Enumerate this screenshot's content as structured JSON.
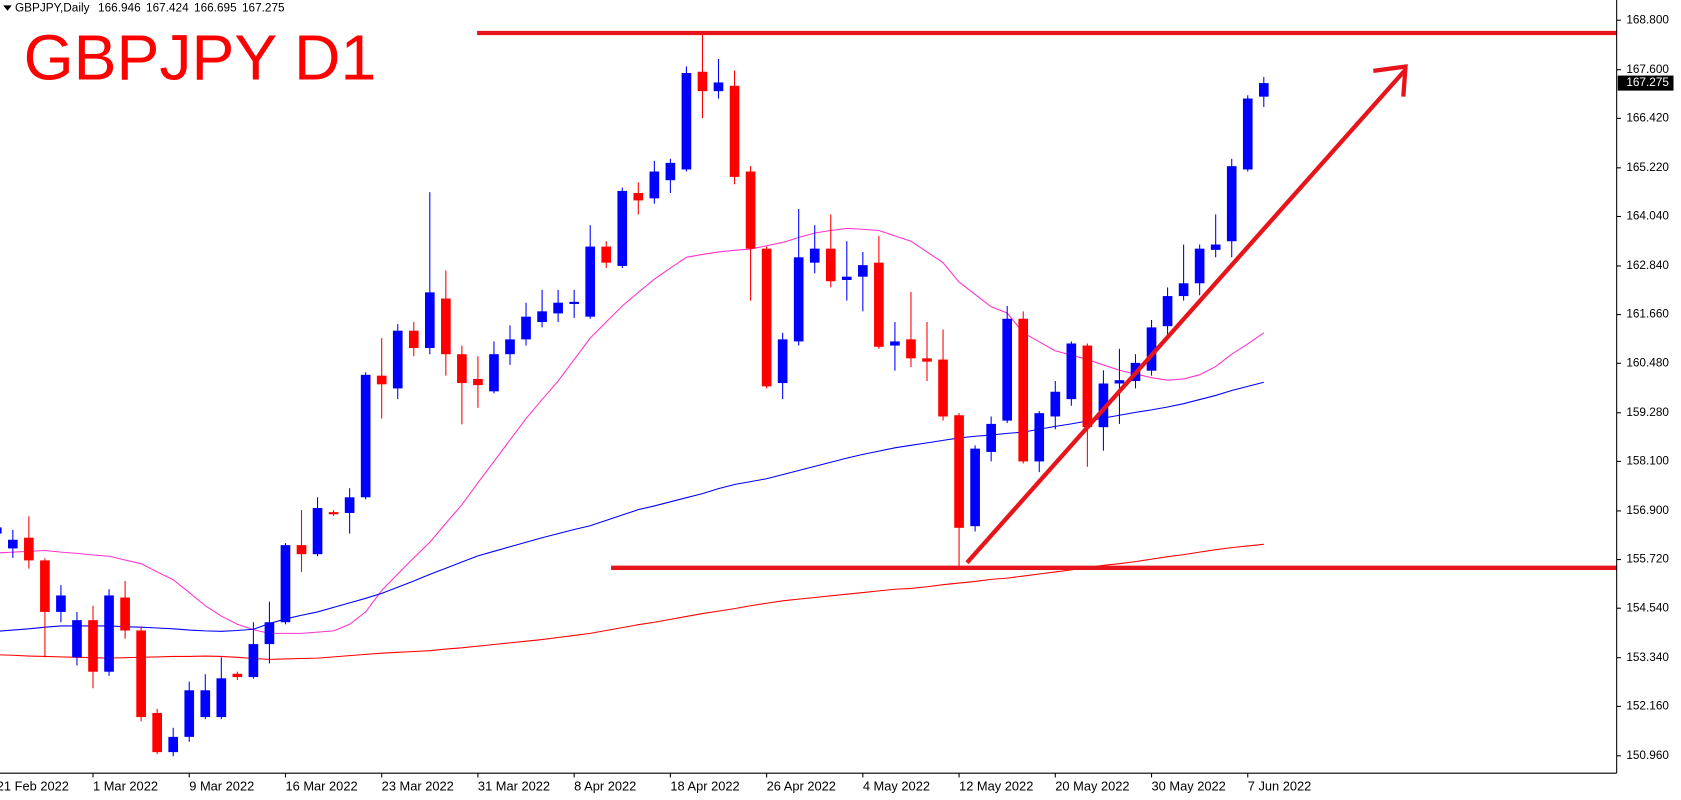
{
  "chart_data": {
    "type": "candlestick",
    "symbol": "GBPJPY,Daily",
    "title": "GBPJPY D1",
    "categories": [
      "21 Feb 2022",
      null,
      null,
      null,
      null,
      null,
      "1 Mar 2022",
      null,
      null,
      null,
      null,
      null,
      "9 Mar 2022",
      null,
      null,
      null,
      null,
      null,
      "16 Mar 2022",
      null,
      null,
      null,
      null,
      null,
      "23 Mar 2022",
      null,
      null,
      null,
      null,
      null,
      "31 Mar 2022",
      null,
      null,
      null,
      null,
      null,
      "8 Apr 2022",
      null,
      null,
      null,
      null,
      null,
      "18 Apr 2022",
      null,
      null,
      null,
      null,
      null,
      "26 Apr 2022",
      null,
      null,
      null,
      null,
      null,
      "4 May 2022",
      null,
      null,
      null,
      null,
      null,
      "12 May 2022",
      null,
      null,
      null,
      null,
      null,
      "20 May 2022",
      null,
      null,
      null,
      null,
      null,
      "30 May 2022",
      null,
      null,
      null,
      null,
      null,
      "7 Jun 2022",
      null
    ],
    "open": [
      156.35,
      155.99,
      156.25,
      155.7,
      154.45,
      153.35,
      154.25,
      153.0,
      154.8,
      154.0,
      152.0,
      151.05,
      151.42,
      151.9,
      151.9,
      152.95,
      152.87,
      153.67,
      154.2,
      156.07,
      155.85,
      156.87,
      156.85,
      157.23,
      160.18,
      159.87,
      161.27,
      160.85,
      162.05,
      160.7,
      160.1,
      159.8,
      160.7,
      161.06,
      161.48,
      161.69,
      161.92,
      161.61,
      163.31,
      162.84,
      164.61,
      164.48,
      164.92,
      165.18,
      167.55,
      167.08,
      167.21,
      165.13,
      163.26,
      160.0,
      161.01,
      162.92,
      163.26,
      162.5,
      162.58,
      162.92,
      160.91,
      161.06,
      160.6,
      160.57,
      159.22,
      156.53,
      158.33,
      159.09,
      161.56,
      158.1,
      159.19,
      159.61,
      160.91,
      158.93,
      159.99,
      160.05,
      160.3,
      161.38,
      162.11,
      162.42,
      163.23,
      163.44,
      165.18,
      166.946
    ],
    "high": [
      156.6,
      156.44,
      156.77,
      155.75,
      155.1,
      154.45,
      154.6,
      155.0,
      155.2,
      154.1,
      152.1,
      151.64,
      152.76,
      152.94,
      153.35,
      153.0,
      154.2,
      154.7,
      156.12,
      156.92,
      157.23,
      156.92,
      157.45,
      160.26,
      161.09,
      161.43,
      161.48,
      164.63,
      162.73,
      160.91,
      160.65,
      161.01,
      161.4,
      161.95,
      162.26,
      162.26,
      162.26,
      163.83,
      163.44,
      164.74,
      164.87,
      165.39,
      165.44,
      167.68,
      168.46,
      167.86,
      167.58,
      165.26,
      163.31,
      161.22,
      164.22,
      163.83,
      164.09,
      163.44,
      163.18,
      163.57,
      161.48,
      162.21,
      161.48,
      161.3,
      159.27,
      158.49,
      159.19,
      161.87,
      161.74,
      159.32,
      160.05,
      161.01,
      160.96,
      160.31,
      160.83,
      160.7,
      161.53,
      162.32,
      163.36,
      163.36,
      164.09,
      165.44,
      166.98,
      167.424
    ],
    "low": [
      156.0,
      155.76,
      155.5,
      153.35,
      154.2,
      153.15,
      152.6,
      152.9,
      153.8,
      151.8,
      151.0,
      150.95,
      151.3,
      151.85,
      151.85,
      152.8,
      152.83,
      153.2,
      154.15,
      155.42,
      155.8,
      156.78,
      156.35,
      157.18,
      159.14,
      159.61,
      160.65,
      160.7,
      160.18,
      159.0,
      159.4,
      159.75,
      160.44,
      160.91,
      161.35,
      161.48,
      161.58,
      161.56,
      162.79,
      162.79,
      164.09,
      164.35,
      164.61,
      165.13,
      166.43,
      166.9,
      164.82,
      162.0,
      159.87,
      159.61,
      160.91,
      162.66,
      162.32,
      162.0,
      161.74,
      160.83,
      160.3,
      160.39,
      160.05,
      159.09,
      155.55,
      156.4,
      158.1,
      159.03,
      158.05,
      157.84,
      158.88,
      159.45,
      157.97,
      158.36,
      159.01,
      159.87,
      160.18,
      161.09,
      162.0,
      162.13,
      163.05,
      163.05,
      165.13,
      166.695
    ],
    "close": [
      156.5,
      156.2,
      155.7,
      154.45,
      154.85,
      154.25,
      153.0,
      154.85,
      154.0,
      151.9,
      151.05,
      151.42,
      152.55,
      152.55,
      152.84,
      152.87,
      153.67,
      154.2,
      156.07,
      155.85,
      156.97,
      156.82,
      157.23,
      160.2,
      159.97,
      161.27,
      160.85,
      162.2,
      160.7,
      160.0,
      159.95,
      160.7,
      161.06,
      161.61,
      161.74,
      161.95,
      161.97,
      163.31,
      162.92,
      164.66,
      164.43,
      165.13,
      165.34,
      167.52,
      167.08,
      167.29,
      165.0,
      163.26,
      159.92,
      161.06,
      163.05,
      163.26,
      162.47,
      162.58,
      162.86,
      160.88,
      161.01,
      160.6,
      160.52,
      159.19,
      156.49,
      158.41,
      159.01,
      161.56,
      158.1,
      159.27,
      159.79,
      160.96,
      158.93,
      159.99,
      160.07,
      160.49,
      161.35,
      162.11,
      162.42,
      163.26,
      163.36,
      165.26,
      166.9,
      167.275
    ],
    "up_color": "#0000ff",
    "down_color": "#ff0000",
    "moving_averages": [
      {
        "color": "#ff33cc",
        "values": [
          155.88,
          155.9,
          155.92,
          155.94,
          155.9,
          155.87,
          155.83,
          155.8,
          155.71,
          155.62,
          155.42,
          155.23,
          154.92,
          154.6,
          154.35,
          154.15,
          154.02,
          153.93,
          153.93,
          153.93,
          153.96,
          153.99,
          154.15,
          154.45,
          154.97,
          155.37,
          155.76,
          156.14,
          156.6,
          157.05,
          157.58,
          158.1,
          158.62,
          159.14,
          159.6,
          160.05,
          160.57,
          161.09,
          161.48,
          161.87,
          162.2,
          162.52,
          162.79,
          163.05,
          163.12,
          163.18,
          163.22,
          163.25,
          163.33,
          163.41,
          163.53,
          163.64,
          163.7,
          163.75,
          163.73,
          163.7,
          163.57,
          163.44,
          163.18,
          162.92,
          162.45,
          162.15,
          161.85,
          161.7,
          161.22,
          161.0,
          160.78,
          160.68,
          160.57,
          160.44,
          160.31,
          160.22,
          160.13,
          160.07,
          160.1,
          160.2,
          160.4,
          160.7,
          160.95,
          161.22
        ]
      },
      {
        "color": "#0000ff",
        "values": [
          153.98,
          154.01,
          154.04,
          154.08,
          154.11,
          154.11,
          154.11,
          154.11,
          154.09,
          154.08,
          154.06,
          154.04,
          154.01,
          153.99,
          153.98,
          154.0,
          154.03,
          154.17,
          154.28,
          154.37,
          154.45,
          154.56,
          154.67,
          154.78,
          154.9,
          155.05,
          155.2,
          155.36,
          155.51,
          155.66,
          155.81,
          155.92,
          156.03,
          156.14,
          156.25,
          156.35,
          156.45,
          156.54,
          156.67,
          156.8,
          156.93,
          157.02,
          157.12,
          157.22,
          157.32,
          157.44,
          157.54,
          157.61,
          157.68,
          157.78,
          157.88,
          157.98,
          158.08,
          158.18,
          158.27,
          158.35,
          158.43,
          158.49,
          158.55,
          158.61,
          158.67,
          158.71,
          158.74,
          158.78,
          158.81,
          158.88,
          158.95,
          159.01,
          159.08,
          159.15,
          159.22,
          159.29,
          159.35,
          159.42,
          159.5,
          159.6,
          159.7,
          159.82,
          159.92,
          160.02
        ]
      },
      {
        "color": "#ff0000",
        "values": [
          153.41,
          153.4,
          153.38,
          153.37,
          153.36,
          153.35,
          153.34,
          153.33,
          153.34,
          153.35,
          153.36,
          153.37,
          153.37,
          153.38,
          153.37,
          153.35,
          153.32,
          153.3,
          153.31,
          153.32,
          153.33,
          153.36,
          153.39,
          153.42,
          153.45,
          153.47,
          153.49,
          153.51,
          153.55,
          153.58,
          153.62,
          153.66,
          153.7,
          153.74,
          153.78,
          153.83,
          153.88,
          153.93,
          154.0,
          154.07,
          154.14,
          154.2,
          154.27,
          154.34,
          154.41,
          154.47,
          154.53,
          154.6,
          154.66,
          154.72,
          154.76,
          154.8,
          154.84,
          154.88,
          154.92,
          154.96,
          155.0,
          155.02,
          155.06,
          155.11,
          155.15,
          155.19,
          155.24,
          155.27,
          155.32,
          155.37,
          155.42,
          155.47,
          155.52,
          155.58,
          155.62,
          155.67,
          155.73,
          155.79,
          155.84,
          155.9,
          155.96,
          156.01,
          156.05,
          156.09
        ]
      }
    ],
    "levels": [
      168.49,
      155.52
    ],
    "level_color": "#e8141b",
    "ylim": [
      150.54,
      169.29
    ],
    "yticks": [
      {
        "value": 168.8,
        "label": "168.800"
      },
      {
        "value": 167.6,
        "label": "167.600"
      },
      {
        "value": 166.42,
        "label": "166.420"
      },
      {
        "value": 165.22,
        "label": "165.220"
      },
      {
        "value": 164.04,
        "label": "164.040"
      },
      {
        "value": 162.84,
        "label": "162.840"
      },
      {
        "value": 161.66,
        "label": "161.660"
      },
      {
        "value": 160.48,
        "label": "160.480"
      },
      {
        "value": 159.28,
        "label": "159.280"
      },
      {
        "value": 158.1,
        "label": "158.100"
      },
      {
        "value": 156.9,
        "label": "156.900"
      },
      {
        "value": 155.72,
        "label": "155.720"
      },
      {
        "value": 154.54,
        "label": "154.540"
      },
      {
        "value": 153.34,
        "label": "153.340"
      },
      {
        "value": 152.16,
        "label": "152.160"
      },
      {
        "value": 150.96,
        "label": "150.960"
      }
    ],
    "grid": false
  }
}
